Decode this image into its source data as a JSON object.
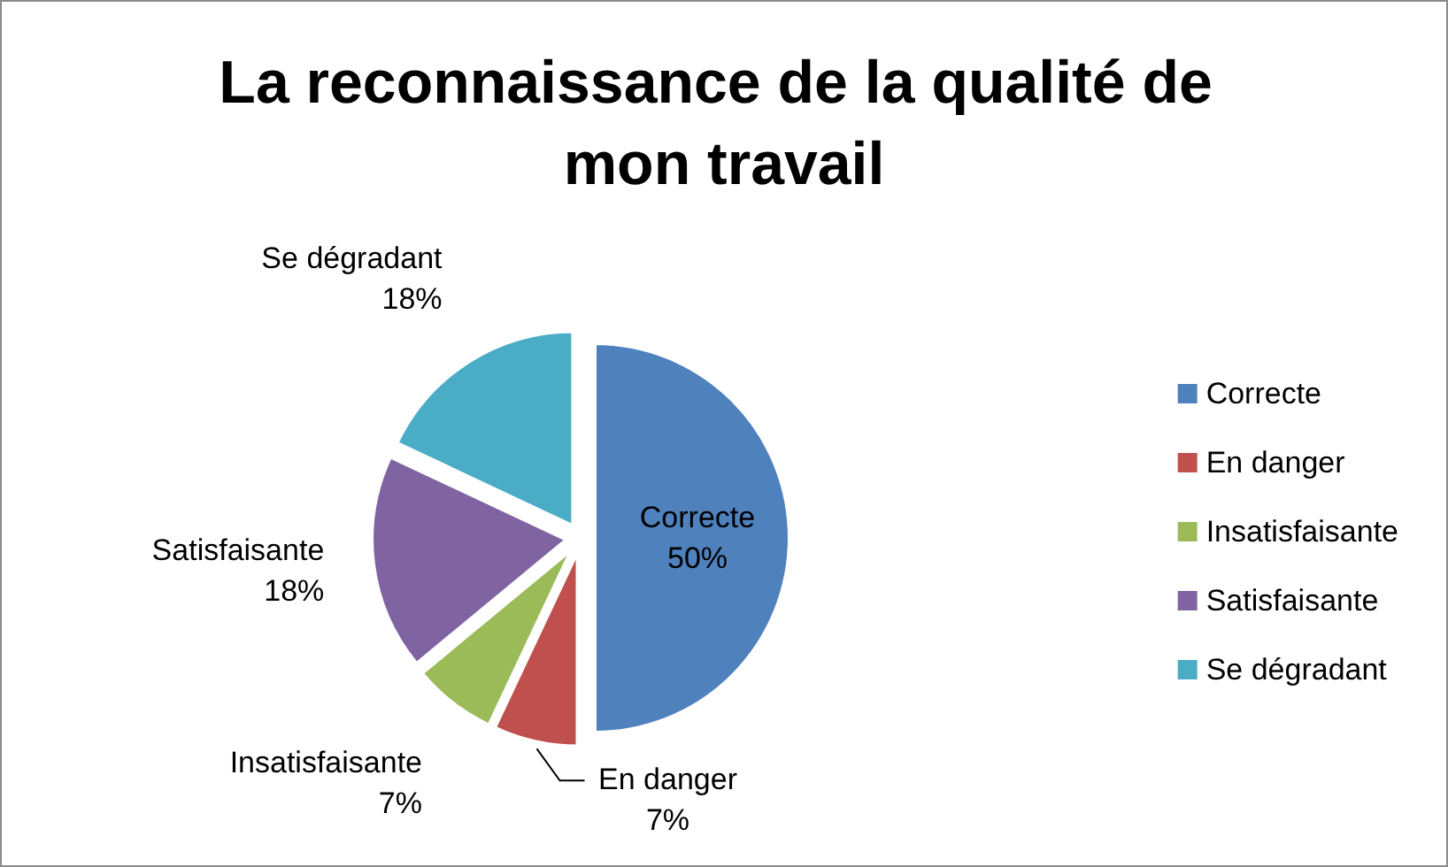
{
  "chart_data": {
    "type": "pie",
    "title": "La reconnaissance de la qualité de mon travail",
    "categories": [
      "Correcte",
      "En danger",
      "Insatisfaisante",
      "Satisfaisante",
      "Se dégradant"
    ],
    "values": [
      50,
      7,
      7,
      18,
      18
    ],
    "value_labels": [
      "50%",
      "7%",
      "7%",
      "18%",
      "18%"
    ],
    "colors": [
      "#4f81bd",
      "#c0504d",
      "#9bbb59",
      "#8064a2",
      "#4bacc6"
    ],
    "legend": "right"
  }
}
